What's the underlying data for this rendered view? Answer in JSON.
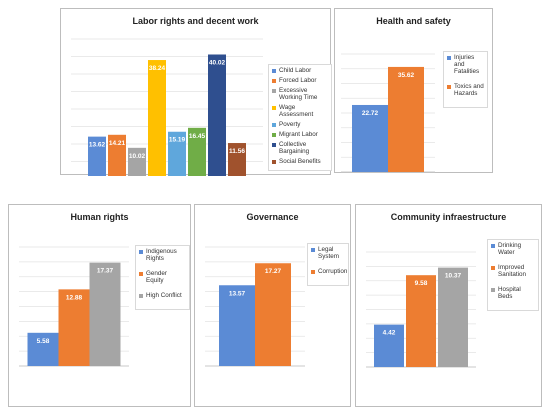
{
  "chart_data": [
    {
      "type": "bar",
      "title": "Labor rights and decent work",
      "categories": [
        "Child Labor",
        "Forced Labor",
        "Excessive Working Time",
        "Wage Assessment",
        "Poverty",
        "Migrant Labor",
        "Collective Bargaining",
        "Social Benefits"
      ],
      "values": [
        13.62,
        14.21,
        10.02,
        38.24,
        15.19,
        16.45,
        40.02,
        11.56
      ],
      "labels": [
        "13.62",
        "14.21",
        "10.02",
        "38.24",
        "15.19",
        "16.45",
        "40.02",
        "11.56"
      ],
      "colors": [
        "#5b8bd5",
        "#ed7d31",
        "#a5a5a5",
        "#ffc000",
        "#5fa7dc",
        "#70ad47",
        "#2f4f8f",
        "#a0522d"
      ],
      "ylim": [
        0,
        45
      ],
      "grid": true,
      "legend": "right"
    },
    {
      "type": "bar",
      "title": "Health and safety",
      "categories": [
        "Injuries and Fatalities",
        "Toxics and Hazards"
      ],
      "values": [
        22.72,
        35.62
      ],
      "labels": [
        "22.72",
        "35.62"
      ],
      "colors": [
        "#5b8bd5",
        "#ed7d31"
      ],
      "ylim": [
        0,
        40
      ],
      "grid": true,
      "legend": "right"
    },
    {
      "type": "bar",
      "title": "Human rights",
      "categories": [
        "Indigenous Rights",
        "Gender Equity",
        "High Conflict"
      ],
      "values": [
        5.58,
        12.88,
        17.37
      ],
      "labels": [
        "5.58",
        "12.88",
        "17.37"
      ],
      "colors": [
        "#5b8bd5",
        "#ed7d31",
        "#a5a5a5"
      ],
      "ylim": [
        0,
        20
      ],
      "grid": true,
      "legend": "right"
    },
    {
      "type": "bar",
      "title": "Governance",
      "categories": [
        "Legal System",
        "Corruption"
      ],
      "values": [
        13.57,
        17.27
      ],
      "labels": [
        "13.57",
        "17.27"
      ],
      "colors": [
        "#5b8bd5",
        "#ed7d31"
      ],
      "ylim": [
        0,
        20
      ],
      "grid": true,
      "legend": "right"
    },
    {
      "type": "bar",
      "title": "Community infraestructure",
      "categories": [
        "Drinking Water",
        "Improved Sanitation",
        "Hospital Beds"
      ],
      "values": [
        4.42,
        9.58,
        10.37
      ],
      "labels": [
        "4.42",
        "9.58",
        "10.37"
      ],
      "colors": [
        "#5b8bd5",
        "#ed7d31",
        "#a5a5a5"
      ],
      "ylim": [
        0,
        12
      ],
      "grid": true,
      "legend": "right"
    }
  ]
}
